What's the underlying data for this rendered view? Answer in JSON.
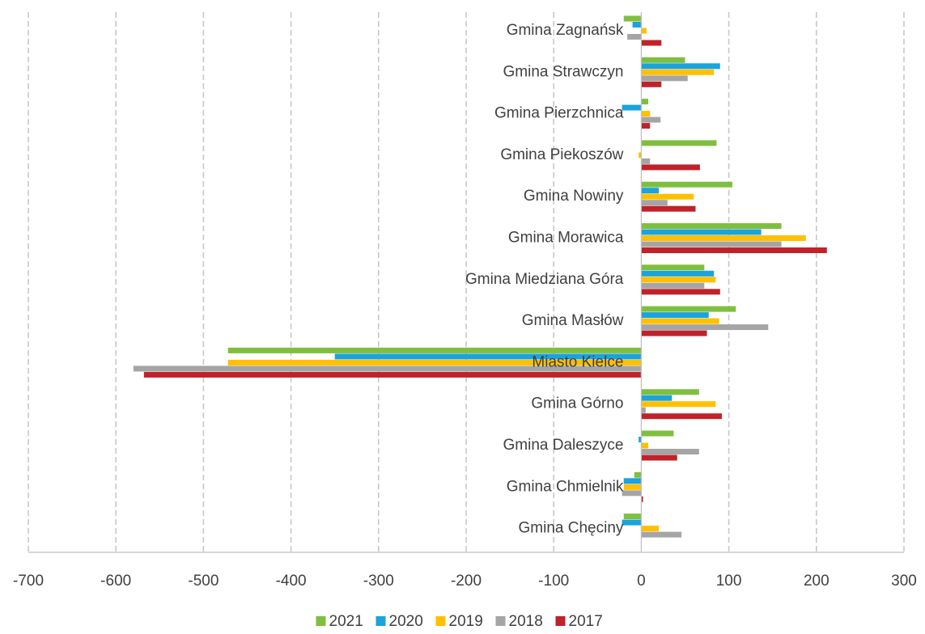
{
  "chart_data": {
    "type": "bar",
    "orientation": "horizontal",
    "categories": [
      "Gmina Zagnańsk",
      "Gmina Strawczyn",
      "Gmina Pierzchnica",
      "Gmina Piekoszów",
      "Gmina Nowiny",
      "Gmina Morawica",
      "Gmina Miedziana Góra",
      "Gmina Masłów",
      "Miasto Kielce",
      "Gmina Górno",
      "Gmina Daleszyce",
      "Gmina Chmielnik",
      "Gmina Chęciny"
    ],
    "series": [
      {
        "name": "2021",
        "color": "#7fbf3f",
        "values": [
          -20,
          50,
          8,
          86,
          104,
          160,
          72,
          108,
          -472,
          66,
          37,
          -8,
          -20
        ]
      },
      {
        "name": "2020",
        "color": "#1aa3dc",
        "values": [
          -10,
          90,
          -22,
          0,
          20,
          137,
          83,
          77,
          -350,
          35,
          -3,
          -20,
          -22
        ]
      },
      {
        "name": "2019",
        "color": "#ffc000",
        "values": [
          6,
          83,
          10,
          -3,
          60,
          188,
          85,
          89,
          -472,
          85,
          8,
          -20,
          20
        ]
      },
      {
        "name": "2018",
        "color": "#a5a5a5",
        "values": [
          -16,
          53,
          22,
          10,
          30,
          160,
          72,
          145,
          -580,
          5,
          66,
          -22,
          46
        ]
      },
      {
        "name": "2017",
        "color": "#c0222a",
        "values": [
          23,
          23,
          10,
          67,
          62,
          212,
          90,
          75,
          -568,
          92,
          41,
          2,
          0
        ]
      }
    ],
    "xlim": [
      -700,
      300
    ],
    "xticks": [
      "-700",
      "-600",
      "-500",
      "-400",
      "-300",
      "-200",
      "-100",
      "0",
      "100",
      "200",
      "300"
    ],
    "grid": "vertical-dashed",
    "legend": "bottom",
    "legend_entries": [
      "2021",
      "2020",
      "2019",
      "2018",
      "2017"
    ],
    "title": "",
    "xlabel": "",
    "ylabel": ""
  }
}
